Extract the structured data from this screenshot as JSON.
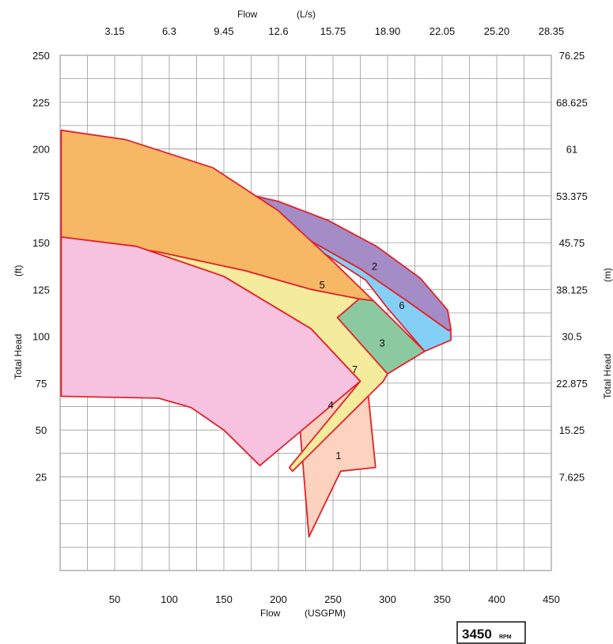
{
  "chart_data": {
    "type": "area",
    "bottom_axis": {
      "title": "Flow",
      "unit": "(USGPM)",
      "range": [
        0,
        450
      ],
      "ticks": [
        "50",
        "100",
        "150",
        "200",
        "250",
        "300",
        "350",
        "400",
        "450"
      ]
    },
    "top_axis": {
      "title": "Flow",
      "unit": "(L/s)",
      "range": [
        0,
        28.35
      ],
      "ticks": [
        "3.15",
        "6.3",
        "9.45",
        "12.6",
        "15.75",
        "18.90",
        "22.05",
        "25.20",
        "28.35"
      ]
    },
    "left_axis": {
      "title": "Total Head",
      "unit": "(ft)",
      "range": [
        -25,
        250
      ],
      "ticks": [
        "25",
        "50",
        "75",
        "100",
        "125",
        "150",
        "175",
        "200",
        "225",
        "250"
      ]
    },
    "right_axis": {
      "title": "Total Head",
      "unit": "(m)",
      "range": [
        -7.625,
        76.25
      ],
      "ticks": [
        "7.625",
        "15.25",
        "22.875",
        "30.5",
        "38.125",
        "45.75",
        "53.375",
        "61",
        "68.625",
        "76.25"
      ]
    },
    "grid": true,
    "zones": [
      {
        "label": "1",
        "color": "#fdd2be",
        "label_at": [
          255,
          36
        ],
        "points": [
          [
            140,
            60
          ],
          [
            202,
            75
          ],
          [
            212,
            104
          ],
          [
            212,
            105
          ],
          [
            228,
            -7
          ],
          [
            257,
            28
          ],
          [
            289,
            30
          ],
          [
            280,
            82
          ],
          [
            246,
            95
          ]
        ]
      },
      {
        "label": "2",
        "color": "#a48cc6",
        "label_at": [
          288,
          137
        ],
        "points": [
          [
            162,
            167
          ],
          [
            220,
            154
          ],
          [
            275,
            136
          ],
          [
            320,
            118
          ],
          [
            356,
            103
          ],
          [
            358,
            104
          ],
          [
            355,
            114
          ],
          [
            330,
            131
          ],
          [
            290,
            148
          ],
          [
            245,
            162
          ],
          [
            200,
            172
          ],
          [
            170,
            176
          ],
          [
            163,
            173
          ]
        ]
      },
      {
        "label": "6",
        "color": "#84cff5",
        "label_at": [
          313,
          116
        ],
        "points": [
          [
            220,
            154
          ],
          [
            275,
            136
          ],
          [
            320,
            118
          ],
          [
            356,
            103
          ],
          [
            358,
            104
          ],
          [
            358,
            98
          ],
          [
            334,
            92
          ],
          [
            300,
            115
          ],
          [
            280,
            130
          ],
          [
            240,
            145
          ]
        ]
      },
      {
        "label": "3",
        "color": "#8bcaa0",
        "label_at": [
          295,
          96
        ],
        "points": [
          [
            90,
            160
          ],
          [
            170,
            135
          ],
          [
            230,
            125
          ],
          [
            287,
            119
          ],
          [
            334,
            92
          ],
          [
            300,
            80
          ],
          [
            278,
            80
          ],
          [
            254,
            110
          ],
          [
            180,
            143
          ]
        ]
      },
      {
        "label": "5",
        "color": "#f7b865",
        "label_at": [
          240,
          127
        ],
        "points": [
          [
            1,
            210
          ],
          [
            60,
            205
          ],
          [
            140,
            190
          ],
          [
            200,
            167
          ],
          [
            250,
            140
          ],
          [
            287,
            119
          ],
          [
            274,
            120
          ],
          [
            230,
            125
          ],
          [
            170,
            135
          ],
          [
            90,
            145
          ],
          [
            1,
            153
          ]
        ]
      },
      {
        "label": "7",
        "color": "#f4ec9c",
        "label_at": [
          270,
          82
        ],
        "points": [
          [
            1,
            153
          ],
          [
            90,
            145
          ],
          [
            170,
            135
          ],
          [
            230,
            125
          ],
          [
            274,
            120
          ],
          [
            254,
            110
          ],
          [
            300,
            80
          ],
          [
            296,
            76
          ],
          [
            213,
            28
          ],
          [
            210,
            30
          ],
          [
            275,
            76
          ],
          [
            230,
            104
          ],
          [
            150,
            132
          ],
          [
            70,
            148
          ]
        ]
      },
      {
        "label": "4",
        "color": "#f6c2df",
        "label_at": [
          248,
          63
        ],
        "points": [
          [
            1,
            153
          ],
          [
            70,
            148
          ],
          [
            150,
            132
          ],
          [
            230,
            104
          ],
          [
            275,
            76
          ],
          [
            183,
            31
          ],
          [
            150,
            50
          ],
          [
            120,
            62
          ],
          [
            90,
            67
          ],
          [
            1,
            68
          ]
        ]
      }
    ]
  },
  "rpm_badge": {
    "value": "3450",
    "unit": "RPM"
  }
}
